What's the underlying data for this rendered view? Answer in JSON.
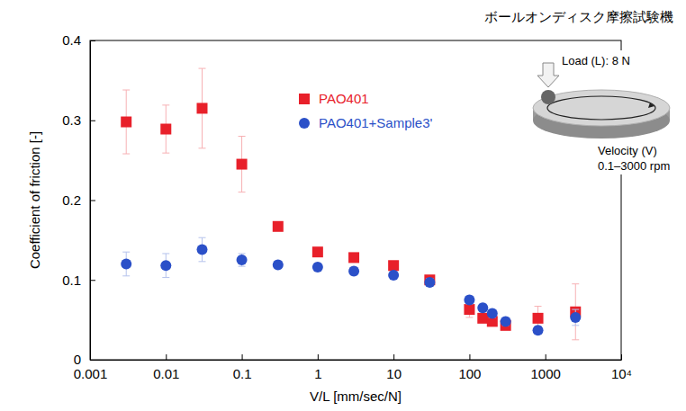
{
  "chart_data": {
    "type": "scatter",
    "x_label": "V/L [mm/sec/N]",
    "y_label": "Coefficient of friction [-]",
    "log": "x",
    "legend": "upper center",
    "xlim": [
      0.001,
      10000
    ],
    "xticks": [
      0.001,
      0.01,
      0.1,
      1,
      10,
      100,
      1000,
      {
        "value": 10000,
        "label": "10⁴"
      }
    ],
    "ylim": [
      0,
      0.4
    ],
    "yticks": [
      0,
      0.1,
      0.2,
      0.3,
      0.4
    ],
    "x": [
      0.003,
      0.01,
      0.03,
      0.1,
      0.3,
      1,
      3,
      10,
      30,
      100,
      150,
      200,
      300,
      800,
      2500
    ],
    "series": [
      {
        "name": "PAO401",
        "color": "#e8202a",
        "marker": "square",
        "values": [
          0.298,
          0.289,
          0.315,
          0.245,
          0.167,
          0.135,
          0.128,
          0.118,
          0.1,
          0.063,
          0.052,
          0.048,
          0.043,
          0.052,
          0.06
        ],
        "errors": [
          0.04,
          0.03,
          0.05,
          0.035,
          0.005,
          0.005,
          0.005,
          0.005,
          0.005,
          0.01,
          0.005,
          0.005,
          0.005,
          0.015,
          0.035
        ]
      },
      {
        "name": "PAO401+Sample3'",
        "color": "#2b50c8",
        "marker": "circle",
        "values": [
          0.12,
          0.118,
          0.138,
          0.125,
          0.119,
          0.116,
          0.111,
          0.106,
          0.097,
          0.075,
          0.065,
          0.058,
          0.048,
          0.037,
          0.053
        ],
        "errors": [
          0.015,
          0.015,
          0.015,
          0.008,
          0.005,
          0.005,
          0.005,
          0.005,
          0.005,
          0.005,
          0.005,
          0.005,
          0.005,
          0.005,
          0.01
        ]
      }
    ],
    "annotations": [
      "ボールオンディスク摩擦試験機",
      "Load (L): 8 N",
      "Velocity (V)",
      "0.1–3000 rpm"
    ]
  }
}
